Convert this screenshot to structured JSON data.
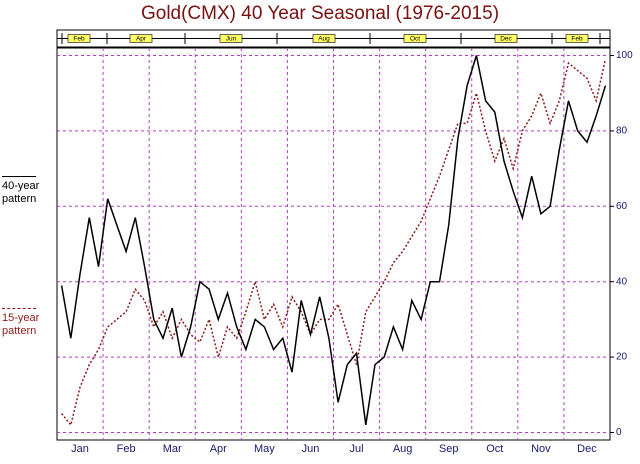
{
  "chart_data": {
    "type": "line",
    "title": "Gold(CMX) 40 Year Seasonal (1976-2015)",
    "timeline_labels": [
      "Feb",
      "Apr",
      "Jun",
      "Aug",
      "Oct",
      "Dec",
      "Feb"
    ],
    "categories": [
      null,
      null,
      "Jan",
      null,
      null,
      null,
      null,
      "Feb",
      null,
      null,
      null,
      null,
      "Mar",
      null,
      null,
      null,
      null,
      "Apr",
      null,
      null,
      null,
      null,
      "May",
      null,
      null,
      null,
      null,
      "Jun",
      null,
      null,
      null,
      null,
      "Jul",
      null,
      null,
      null,
      null,
      "Aug",
      null,
      null,
      null,
      null,
      "Sep",
      null,
      null,
      null,
      null,
      "Oct",
      null,
      null,
      null,
      null,
      "Nov",
      null,
      null,
      null,
      null,
      "Dec",
      null,
      null
    ],
    "series": [
      {
        "name": "40-year pattern",
        "color": "#000000",
        "dash": "none",
        "values": [
          39,
          25,
          42,
          57,
          44,
          62,
          55,
          48,
          57,
          44,
          30,
          25,
          33,
          20,
          28,
          40,
          38,
          30,
          37,
          28,
          22,
          30,
          28,
          22,
          25,
          16,
          35,
          26,
          36,
          25,
          8,
          18,
          21,
          2,
          18,
          20,
          28,
          22,
          35,
          30,
          40,
          40,
          55,
          78,
          92,
          100,
          88,
          85,
          72,
          64,
          57,
          68,
          58,
          60,
          75,
          88,
          80,
          77,
          84,
          92
        ]
      },
      {
        "name": "15-year pattern",
        "color": "#8b1a1a",
        "dash": "2,2",
        "values": [
          5,
          2,
          12,
          18,
          22,
          28,
          30,
          32,
          38,
          35,
          28,
          32,
          25,
          30,
          26,
          24,
          30,
          20,
          28,
          25,
          32,
          40,
          30,
          34,
          28,
          36,
          32,
          26,
          30,
          30,
          34,
          26,
          18,
          32,
          36,
          40,
          45,
          48,
          52,
          56,
          62,
          68,
          75,
          82,
          82,
          90,
          80,
          72,
          78,
          70,
          80,
          84,
          90,
          82,
          88,
          98,
          96,
          94,
          88,
          99
        ]
      }
    ],
    "ylim": [
      -2,
      102
    ],
    "yticks": [
      0,
      20,
      40,
      60,
      80,
      100
    ],
    "grid": true
  }
}
